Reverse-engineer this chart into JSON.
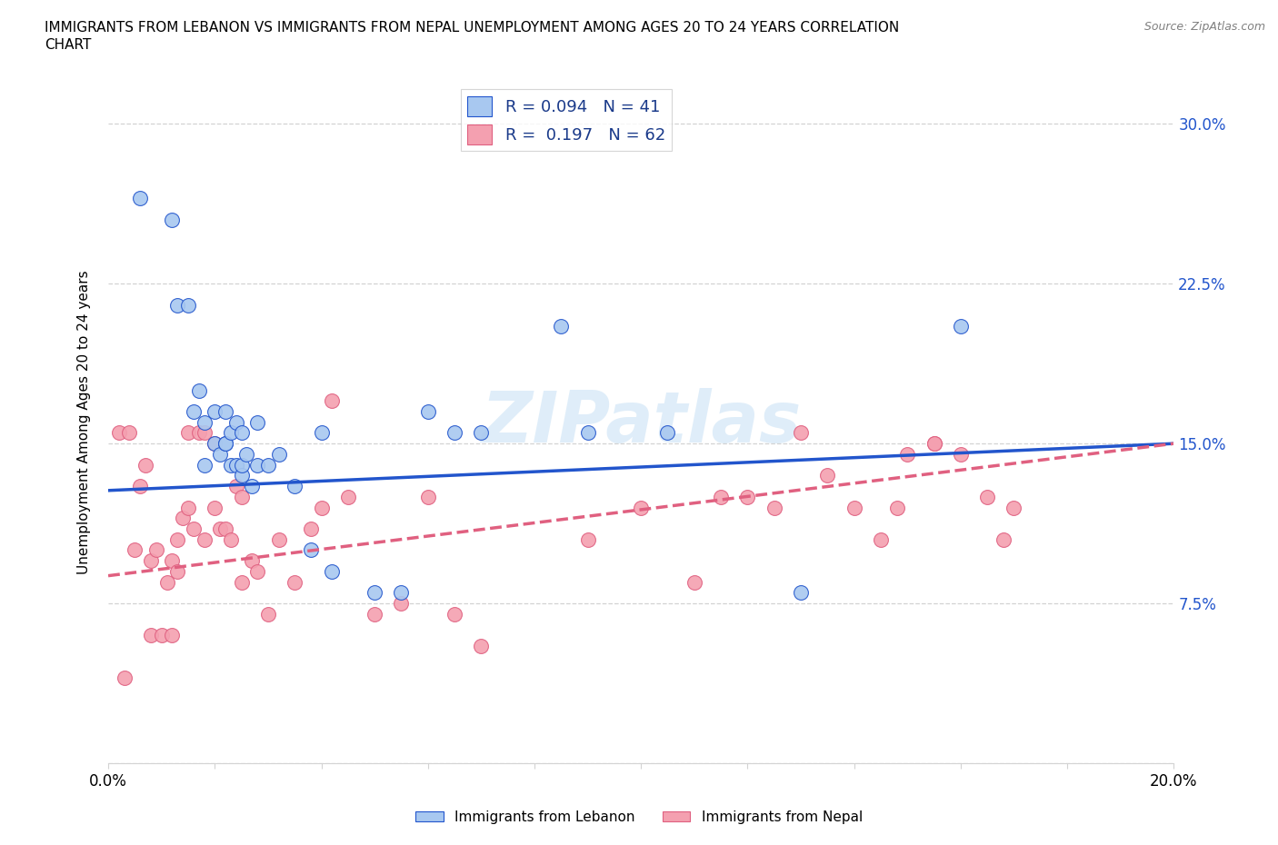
{
  "title_line1": "IMMIGRANTS FROM LEBANON VS IMMIGRANTS FROM NEPAL UNEMPLOYMENT AMONG AGES 20 TO 24 YEARS CORRELATION",
  "title_line2": "CHART",
  "source_text": "Source: ZipAtlas.com",
  "ylabel": "Unemployment Among Ages 20 to 24 years",
  "xlim": [
    0.0,
    0.2
  ],
  "ylim": [
    0.0,
    0.32
  ],
  "xticks": [
    0.0,
    0.02,
    0.04,
    0.06,
    0.08,
    0.1,
    0.12,
    0.14,
    0.16,
    0.18,
    0.2
  ],
  "yticks": [
    0.0,
    0.075,
    0.15,
    0.225,
    0.3
  ],
  "ytick_labels": [
    "",
    "7.5%",
    "15.0%",
    "22.5%",
    "30.0%"
  ],
  "lebanon_color": "#a8c8f0",
  "nepal_color": "#f4a0b0",
  "lebanon_line_color": "#2255cc",
  "nepal_line_color": "#e06080",
  "legend_R_lebanon": "0.094",
  "legend_N_lebanon": "41",
  "legend_R_nepal": "0.197",
  "legend_N_nepal": "62",
  "watermark": "ZIPatlas",
  "lebanon_x": [
    0.006,
    0.012,
    0.013,
    0.015,
    0.016,
    0.017,
    0.018,
    0.018,
    0.02,
    0.02,
    0.021,
    0.022,
    0.022,
    0.022,
    0.023,
    0.023,
    0.024,
    0.024,
    0.025,
    0.025,
    0.025,
    0.026,
    0.027,
    0.028,
    0.028,
    0.03,
    0.032,
    0.035,
    0.038,
    0.04,
    0.042,
    0.05,
    0.055,
    0.06,
    0.065,
    0.07,
    0.085,
    0.09,
    0.105,
    0.13,
    0.16
  ],
  "lebanon_y": [
    0.265,
    0.255,
    0.215,
    0.215,
    0.165,
    0.175,
    0.14,
    0.16,
    0.15,
    0.165,
    0.145,
    0.15,
    0.15,
    0.165,
    0.14,
    0.155,
    0.14,
    0.16,
    0.135,
    0.14,
    0.155,
    0.145,
    0.13,
    0.14,
    0.16,
    0.14,
    0.145,
    0.13,
    0.1,
    0.155,
    0.09,
    0.08,
    0.08,
    0.165,
    0.155,
    0.155,
    0.205,
    0.155,
    0.155,
    0.08,
    0.205
  ],
  "nepal_x": [
    0.002,
    0.003,
    0.004,
    0.005,
    0.006,
    0.007,
    0.008,
    0.008,
    0.009,
    0.01,
    0.011,
    0.012,
    0.012,
    0.013,
    0.013,
    0.014,
    0.015,
    0.015,
    0.016,
    0.017,
    0.018,
    0.018,
    0.02,
    0.02,
    0.021,
    0.022,
    0.023,
    0.024,
    0.025,
    0.025,
    0.027,
    0.028,
    0.03,
    0.032,
    0.035,
    0.038,
    0.04,
    0.042,
    0.045,
    0.05,
    0.055,
    0.06,
    0.065,
    0.07,
    0.09,
    0.1,
    0.11,
    0.115,
    0.12,
    0.125,
    0.13,
    0.135,
    0.14,
    0.145,
    0.148,
    0.15,
    0.155,
    0.155,
    0.16,
    0.165,
    0.168,
    0.17
  ],
  "nepal_y": [
    0.155,
    0.04,
    0.155,
    0.1,
    0.13,
    0.14,
    0.06,
    0.095,
    0.1,
    0.06,
    0.085,
    0.06,
    0.095,
    0.09,
    0.105,
    0.115,
    0.12,
    0.155,
    0.11,
    0.155,
    0.155,
    0.105,
    0.12,
    0.15,
    0.11,
    0.11,
    0.105,
    0.13,
    0.085,
    0.125,
    0.095,
    0.09,
    0.07,
    0.105,
    0.085,
    0.11,
    0.12,
    0.17,
    0.125,
    0.07,
    0.075,
    0.125,
    0.07,
    0.055,
    0.105,
    0.12,
    0.085,
    0.125,
    0.125,
    0.12,
    0.155,
    0.135,
    0.12,
    0.105,
    0.12,
    0.145,
    0.15,
    0.15,
    0.145,
    0.125,
    0.105,
    0.12
  ],
  "leb_trend_x0": 0.0,
  "leb_trend_y0": 0.128,
  "leb_trend_x1": 0.2,
  "leb_trend_y1": 0.15,
  "nep_trend_x0": 0.0,
  "nep_trend_y0": 0.088,
  "nep_trend_x1": 0.2,
  "nep_trend_y1": 0.15
}
